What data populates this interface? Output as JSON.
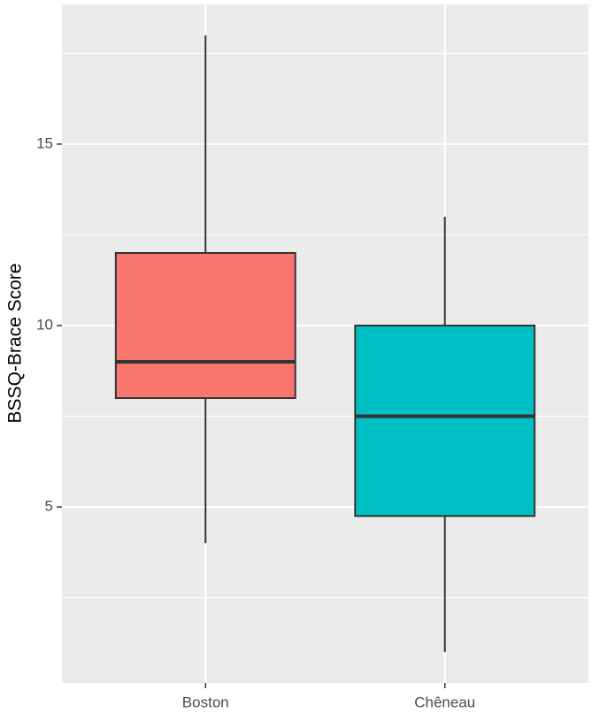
{
  "chart_data": {
    "type": "box",
    "y_label": "BSSQ-Brace Score",
    "categories": [
      "Boston",
      "Chêneau"
    ],
    "colors": [
      "#F8766D",
      "#00BFC4"
    ],
    "values": [
      {
        "min": 4,
        "q1": 8,
        "median": 9,
        "q3": 12,
        "max": 18
      },
      {
        "min": 1,
        "q1": 4.75,
        "median": 7.5,
        "q3": 10,
        "max": 13
      }
    ],
    "ylim": [
      0.15,
      18.85
    ],
    "yticks": [
      5,
      10,
      15
    ],
    "minor_yticks": [
      2.5,
      7.5,
      12.5,
      17.5
    ],
    "grid": true
  }
}
